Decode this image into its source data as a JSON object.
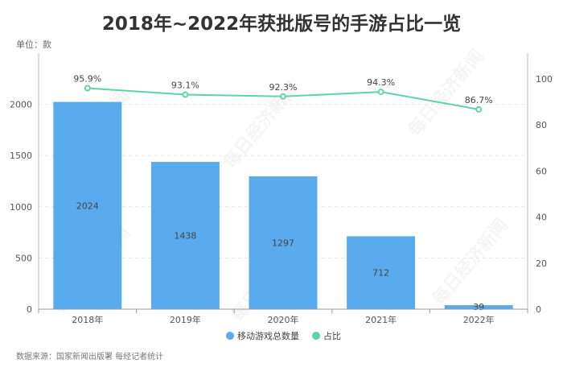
{
  "chart_data": {
    "type": "bar",
    "title": "2018年~2022年获批版号的手游占比一览",
    "unit_label": "单位：款",
    "source": "数据来源：国家新闻出版署 每经记者统计",
    "watermark": "每日经济新闻",
    "categories": [
      "2018年",
      "2019年",
      "2020年",
      "2021年",
      "2022年"
    ],
    "series": [
      {
        "name": "移动游戏总数量",
        "type": "bar",
        "axis": "left",
        "color": "#5aabee",
        "values": [
          2024,
          1438,
          1297,
          712,
          39
        ],
        "labels": [
          "2024",
          "1438",
          "1297",
          "712",
          "39"
        ]
      },
      {
        "name": "占比",
        "type": "line",
        "axis": "right",
        "color": "#5fd3a8",
        "values": [
          95.9,
          93.1,
          92.3,
          94.3,
          86.7
        ],
        "labels": [
          "95.9%",
          "93.1%",
          "92.3%",
          "94.3%",
          "86.7%"
        ]
      }
    ],
    "y_left": {
      "min": 0,
      "max": 2500,
      "ticks": [
        "0",
        "500",
        "1000",
        "1500",
        "2000"
      ]
    },
    "y_right": {
      "min": 0,
      "max": 111.1,
      "ticks": [
        "0",
        "20",
        "40",
        "60",
        "80",
        "100"
      ]
    },
    "legend_position": "bottom-center",
    "grid": true
  }
}
